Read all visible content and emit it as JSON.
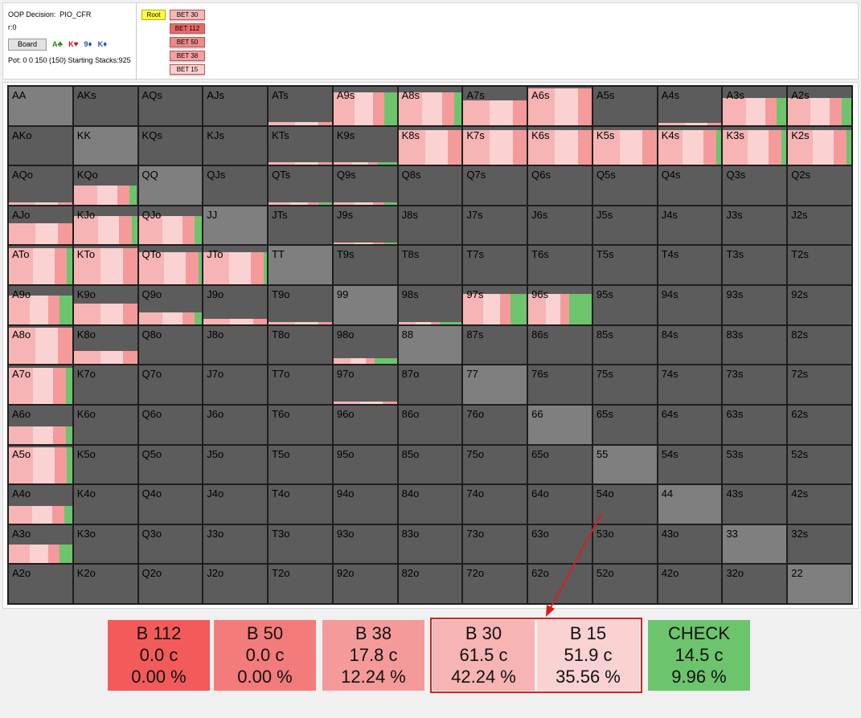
{
  "header": {
    "decision_label": "OOP Decision:",
    "decision_value": "PIO_CFR",
    "r_line": "r:0",
    "board_button": "Board",
    "cards": [
      {
        "rank": "A",
        "suit": "♣",
        "color": "#1a8a1a"
      },
      {
        "rank": "K",
        "suit": "♥",
        "color": "#d01010"
      },
      {
        "rank": "9",
        "suit": "♦",
        "color": "#2050c0"
      },
      {
        "rank": "K",
        "suit": "♦",
        "color": "#2050c0"
      }
    ],
    "pot_line": "Pot: 0 0 150 (150) Starting Stacks:925"
  },
  "tree": {
    "root": "Root",
    "nodes": [
      {
        "label": "BET 30",
        "color": "#f4b8b8"
      },
      {
        "label": "BET 112",
        "color": "#e86a6a"
      },
      {
        "label": "BET 50",
        "color": "#ee8a8a"
      },
      {
        "label": "BET 38",
        "color": "#f2a0a0"
      },
      {
        "label": "BET 15",
        "color": "#f8d0d0"
      }
    ]
  },
  "colors": {
    "b112": "#f35b5b",
    "b50": "#f47b7b",
    "b38": "#f59a9a",
    "b30": "#f7b4b4",
    "b15": "#fad2d2",
    "check": "#6cc46c",
    "empty_cell": "#5c5c5c",
    "pair_cell": "#7f7f7f",
    "highlight": "#d42020"
  },
  "matrix": {
    "rows": [
      [
        {
          "h": "AA",
          "f": 0
        },
        {
          "h": "AKs",
          "f": 0
        },
        {
          "h": "AQs",
          "f": 0
        },
        {
          "h": "AJs",
          "f": 0
        },
        {
          "h": "ATs",
          "f": 0.08,
          "c": 0
        },
        {
          "h": "A9s",
          "f": 0.85,
          "c": 0.2
        },
        {
          "h": "A8s",
          "f": 0.85,
          "c": 0.12
        },
        {
          "h": "A7s",
          "f": 0.65,
          "c": 0
        },
        {
          "h": "A6s",
          "f": 0.95,
          "c": 0
        },
        {
          "h": "A5s",
          "f": 0
        },
        {
          "h": "A4s",
          "f": 0.05,
          "c": 0
        },
        {
          "h": "A3s",
          "f": 0.7,
          "c": 0.15
        },
        {
          "h": "A2s",
          "f": 0.7,
          "c": 0.15
        }
      ],
      [
        {
          "h": "AKo",
          "f": 0
        },
        {
          "h": "KK",
          "f": 0
        },
        {
          "h": "KQs",
          "f": 0
        },
        {
          "h": "KJs",
          "f": 0
        },
        {
          "h": "KTs",
          "f": 0.06,
          "c": 0
        },
        {
          "h": "K9s",
          "f": 0.06,
          "c": 0.3
        },
        {
          "h": "K8s",
          "f": 0.9,
          "c": 0
        },
        {
          "h": "K7s",
          "f": 0.9,
          "c": 0
        },
        {
          "h": "K6s",
          "f": 0.9,
          "c": 0
        },
        {
          "h": "K5s",
          "f": 0.9,
          "c": 0
        },
        {
          "h": "K4s",
          "f": 0.9,
          "c": 0.08
        },
        {
          "h": "K3s",
          "f": 0.9,
          "c": 0.08
        },
        {
          "h": "K2s",
          "f": 0.9,
          "c": 0.08
        }
      ],
      [
        {
          "h": "AQo",
          "f": 0.06,
          "c": 0
        },
        {
          "h": "KQo",
          "f": 0.5,
          "c": 0.12
        },
        {
          "h": "QQ",
          "f": 0
        },
        {
          "h": "QJs",
          "f": 0
        },
        {
          "h": "QTs",
          "f": 0.06,
          "c": 0.2
        },
        {
          "h": "Q9s",
          "f": 0.06,
          "c": 0.2
        },
        {
          "h": "Q8s",
          "f": 0
        },
        {
          "h": "Q7s",
          "f": 0
        },
        {
          "h": "Q6s",
          "f": 0
        },
        {
          "h": "Q5s",
          "f": 0
        },
        {
          "h": "Q4s",
          "f": 0
        },
        {
          "h": "Q3s",
          "f": 0
        },
        {
          "h": "Q2s",
          "f": 0
        }
      ],
      [
        {
          "h": "AJo",
          "f": 0.55,
          "c": 0
        },
        {
          "h": "KJo",
          "f": 0.75,
          "c": 0.08
        },
        {
          "h": "QJo",
          "f": 0.75,
          "c": 0.12
        },
        {
          "h": "JJ",
          "f": 0
        },
        {
          "h": "JTs",
          "f": 0
        },
        {
          "h": "J9s",
          "f": 0.06,
          "c": 0.2
        },
        {
          "h": "J8s",
          "f": 0
        },
        {
          "h": "J7s",
          "f": 0
        },
        {
          "h": "J6s",
          "f": 0
        },
        {
          "h": "J5s",
          "f": 0
        },
        {
          "h": "J4s",
          "f": 0
        },
        {
          "h": "J3s",
          "f": 0
        },
        {
          "h": "J2s",
          "f": 0
        }
      ],
      [
        {
          "h": "ATo",
          "f": 0.95,
          "c": 0.08
        },
        {
          "h": "KTo",
          "f": 0.95,
          "c": 0
        },
        {
          "h": "QTo",
          "f": 0.85,
          "c": 0.05
        },
        {
          "h": "JTo",
          "f": 0.85,
          "c": 0.05
        },
        {
          "h": "TT",
          "f": 0
        },
        {
          "h": "T9s",
          "f": 0
        },
        {
          "h": "T8s",
          "f": 0
        },
        {
          "h": "T7s",
          "f": 0
        },
        {
          "h": "T6s",
          "f": 0
        },
        {
          "h": "T5s",
          "f": 0
        },
        {
          "h": "T4s",
          "f": 0
        },
        {
          "h": "T3s",
          "f": 0
        },
        {
          "h": "T2s",
          "f": 0
        }
      ],
      [
        {
          "h": "A9o",
          "f": 0.75,
          "c": 0.2
        },
        {
          "h": "K9o",
          "f": 0.55,
          "c": 0
        },
        {
          "h": "Q9o",
          "f": 0.3,
          "c": 0.12
        },
        {
          "h": "J9o",
          "f": 0.15,
          "c": 0
        },
        {
          "h": "T9o",
          "f": 0.06,
          "c": 0
        },
        {
          "h": "99",
          "f": 0
        },
        {
          "h": "98s",
          "f": 0.06,
          "c": 0.35
        },
        {
          "h": "97s",
          "f": 0.8,
          "c": 0.25
        },
        {
          "h": "96s",
          "f": 0.8,
          "c": 0.35
        },
        {
          "h": "95s",
          "f": 0
        },
        {
          "h": "94s",
          "f": 0
        },
        {
          "h": "93s",
          "f": 0
        },
        {
          "h": "92s",
          "f": 0
        }
      ],
      [
        {
          "h": "A8o",
          "f": 0.95,
          "c": 0
        },
        {
          "h": "K8o",
          "f": 0.35,
          "c": 0
        },
        {
          "h": "Q8o",
          "f": 0
        },
        {
          "h": "J8o",
          "f": 0
        },
        {
          "h": "T8o",
          "f": 0
        },
        {
          "h": "98o",
          "f": 0.15,
          "c": 0.35
        },
        {
          "h": "88",
          "f": 0
        },
        {
          "h": "87s",
          "f": 0
        },
        {
          "h": "86s",
          "f": 0
        },
        {
          "h": "85s",
          "f": 0
        },
        {
          "h": "84s",
          "f": 0
        },
        {
          "h": "83s",
          "f": 0
        },
        {
          "h": "82s",
          "f": 0
        }
      ],
      [
        {
          "h": "A7o",
          "f": 0.95,
          "c": 0.1
        },
        {
          "h": "K7o",
          "f": 0
        },
        {
          "h": "Q7o",
          "f": 0
        },
        {
          "h": "J7o",
          "f": 0
        },
        {
          "h": "T7o",
          "f": 0
        },
        {
          "h": "97o",
          "f": 0.06,
          "c": 0
        },
        {
          "h": "87o",
          "f": 0
        },
        {
          "h": "77",
          "f": 0
        },
        {
          "h": "76s",
          "f": 0
        },
        {
          "h": "75s",
          "f": 0
        },
        {
          "h": "74s",
          "f": 0
        },
        {
          "h": "73s",
          "f": 0
        },
        {
          "h": "72s",
          "f": 0
        }
      ],
      [
        {
          "h": "A6o",
          "f": 0.45,
          "c": 0.1
        },
        {
          "h": "K6o",
          "f": 0
        },
        {
          "h": "Q6o",
          "f": 0
        },
        {
          "h": "J6o",
          "f": 0
        },
        {
          "h": "T6o",
          "f": 0
        },
        {
          "h": "96o",
          "f": 0
        },
        {
          "h": "86o",
          "f": 0
        },
        {
          "h": "76o",
          "f": 0
        },
        {
          "h": "66",
          "f": 0
        },
        {
          "h": "65s",
          "f": 0
        },
        {
          "h": "64s",
          "f": 0
        },
        {
          "h": "63s",
          "f": 0
        },
        {
          "h": "62s",
          "f": 0
        }
      ],
      [
        {
          "h": "A5o",
          "f": 0.95,
          "c": 0.08
        },
        {
          "h": "K5o",
          "f": 0
        },
        {
          "h": "Q5o",
          "f": 0
        },
        {
          "h": "J5o",
          "f": 0
        },
        {
          "h": "T5o",
          "f": 0
        },
        {
          "h": "95o",
          "f": 0
        },
        {
          "h": "85o",
          "f": 0
        },
        {
          "h": "75o",
          "f": 0
        },
        {
          "h": "65o",
          "f": 0
        },
        {
          "h": "55",
          "f": 0
        },
        {
          "h": "54s",
          "f": 0
        },
        {
          "h": "53s",
          "f": 0
        },
        {
          "h": "52s",
          "f": 0
        }
      ],
      [
        {
          "h": "A4o",
          "f": 0.45,
          "c": 0.12
        },
        {
          "h": "K4o",
          "f": 0
        },
        {
          "h": "Q4o",
          "f": 0
        },
        {
          "h": "J4o",
          "f": 0
        },
        {
          "h": "T4o",
          "f": 0
        },
        {
          "h": "94o",
          "f": 0
        },
        {
          "h": "84o",
          "f": 0
        },
        {
          "h": "74o",
          "f": 0
        },
        {
          "h": "64o",
          "f": 0
        },
        {
          "h": "54o",
          "f": 0
        },
        {
          "h": "44",
          "f": 0
        },
        {
          "h": "43s",
          "f": 0
        },
        {
          "h": "42s",
          "f": 0
        }
      ],
      [
        {
          "h": "A3o",
          "f": 0.5,
          "c": 0.2
        },
        {
          "h": "K3o",
          "f": 0
        },
        {
          "h": "Q3o",
          "f": 0
        },
        {
          "h": "J3o",
          "f": 0
        },
        {
          "h": "T3o",
          "f": 0
        },
        {
          "h": "93o",
          "f": 0
        },
        {
          "h": "83o",
          "f": 0
        },
        {
          "h": "73o",
          "f": 0
        },
        {
          "h": "63o",
          "f": 0
        },
        {
          "h": "53o",
          "f": 0
        },
        {
          "h": "43o",
          "f": 0
        },
        {
          "h": "33",
          "f": 0
        },
        {
          "h": "32s",
          "f": 0
        }
      ],
      [
        {
          "h": "A2o",
          "f": 0
        },
        {
          "h": "K2o",
          "f": 0
        },
        {
          "h": "Q2o",
          "f": 0
        },
        {
          "h": "J2o",
          "f": 0
        },
        {
          "h": "T2o",
          "f": 0
        },
        {
          "h": "92o",
          "f": 0
        },
        {
          "h": "82o",
          "f": 0
        },
        {
          "h": "72o",
          "f": 0
        },
        {
          "h": "62o",
          "f": 0
        },
        {
          "h": "52o",
          "f": 0
        },
        {
          "h": "42o",
          "f": 0
        },
        {
          "h": "32o",
          "f": 0
        },
        {
          "h": "22",
          "f": 0
        }
      ]
    ]
  },
  "actions": [
    {
      "name": "B 112",
      "ev": "0.0 c",
      "pct": "0.00 %",
      "color": "#f35b5b"
    },
    {
      "name": "B 50",
      "ev": "0.0 c",
      "pct": "0.00 %",
      "color": "#f47b7b"
    },
    {
      "name": "B 38",
      "ev": "17.8 c",
      "pct": "12.24 %",
      "color": "#f59a9a"
    },
    {
      "name": "B 30",
      "ev": "61.5 c",
      "pct": "42.24 %",
      "color": "#f7b4b4"
    },
    {
      "name": "B 15",
      "ev": "51.9 c",
      "pct": "35.56 %",
      "color": "#fad2d2"
    },
    {
      "name": "CHECK",
      "ev": "14.5 c",
      "pct": "9.96 %",
      "color": "#6cc46c"
    }
  ]
}
